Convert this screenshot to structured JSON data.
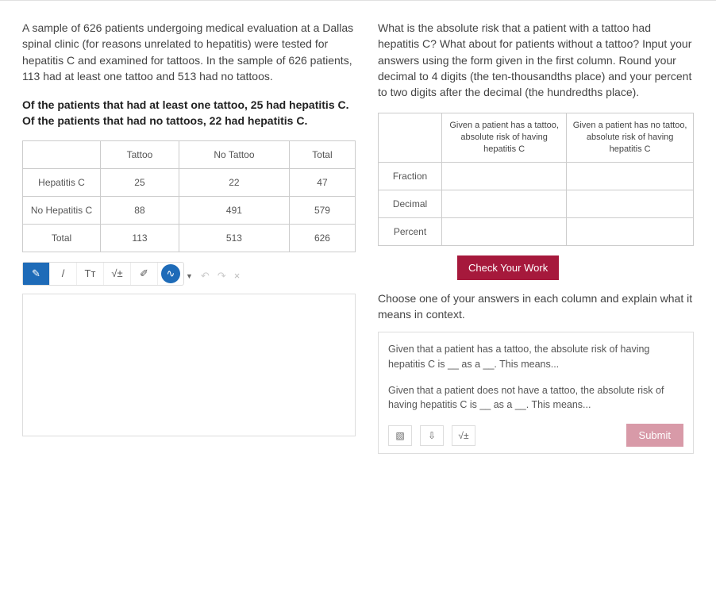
{
  "left": {
    "para1": "A sample of 626 patients undergoing medical evaluation at a Dallas spinal clinic (for reasons unrelated to hepatitis) were tested for hepatitis C and examined for tattoos.  In the sample of 626 patients, 113 had at least one tattoo and 513 had no tattoos.",
    "para2": "Of the patients that had at least one tattoo, 25 had hepatitis C.  Of the patients that had no tattoos, 22 had hepatitis C.",
    "table": {
      "headers": [
        "",
        "Tattoo",
        "No Tattoo",
        "Total"
      ],
      "rows": [
        [
          "Hepatitis C",
          "25",
          "22",
          "47"
        ],
        [
          "No Hepatitis C",
          "88",
          "491",
          "579"
        ],
        [
          "Total",
          "113",
          "513",
          "626"
        ]
      ]
    },
    "toolbar": {
      "pencil_fill": "✎",
      "pencil_line": "/",
      "text": "Tᴛ",
      "math": "√±",
      "eraser": "✐",
      "handwriting": "∿",
      "undo": "↶",
      "redo": "↷",
      "close": "×"
    }
  },
  "right": {
    "question": "What is the absolute risk that a patient with a tattoo had hepatitis C? What about for patients without a tattoo? Input your answers using the form given in the first column. Round your decimal to 4 digits (the ten-thousandths place) and your percent to two digits after the decimal (the hundredths place).",
    "answer_table": {
      "col1_header": "Given a patient has a tattoo, absolute risk of having hepatitis C",
      "col2_header": "Given a patient has no tattoo, absolute risk of having hepatitis C",
      "rows": [
        "Fraction",
        "Decimal",
        "Percent"
      ]
    },
    "check_label": "Check Your Work",
    "instr": "Choose one of your answers in each column and explain what it means in context.",
    "response_p1": "Given that a patient has a tattoo, the absolute risk of having hepatitis C is __ as a __. This means...",
    "response_p2": "Given that a patient does not have a tattoo, the absolute risk of having hepatitis C is __ as a __. This means...",
    "response_toolbar": {
      "image": "▧",
      "mic": "⇩",
      "math": "√±",
      "submit": "Submit"
    }
  },
  "colors": {
    "primary_blue": "#1e6bb8",
    "maroon": "#a6193c",
    "submit_pink": "#d89aa8",
    "border": "#cccccc",
    "text": "#444444"
  }
}
